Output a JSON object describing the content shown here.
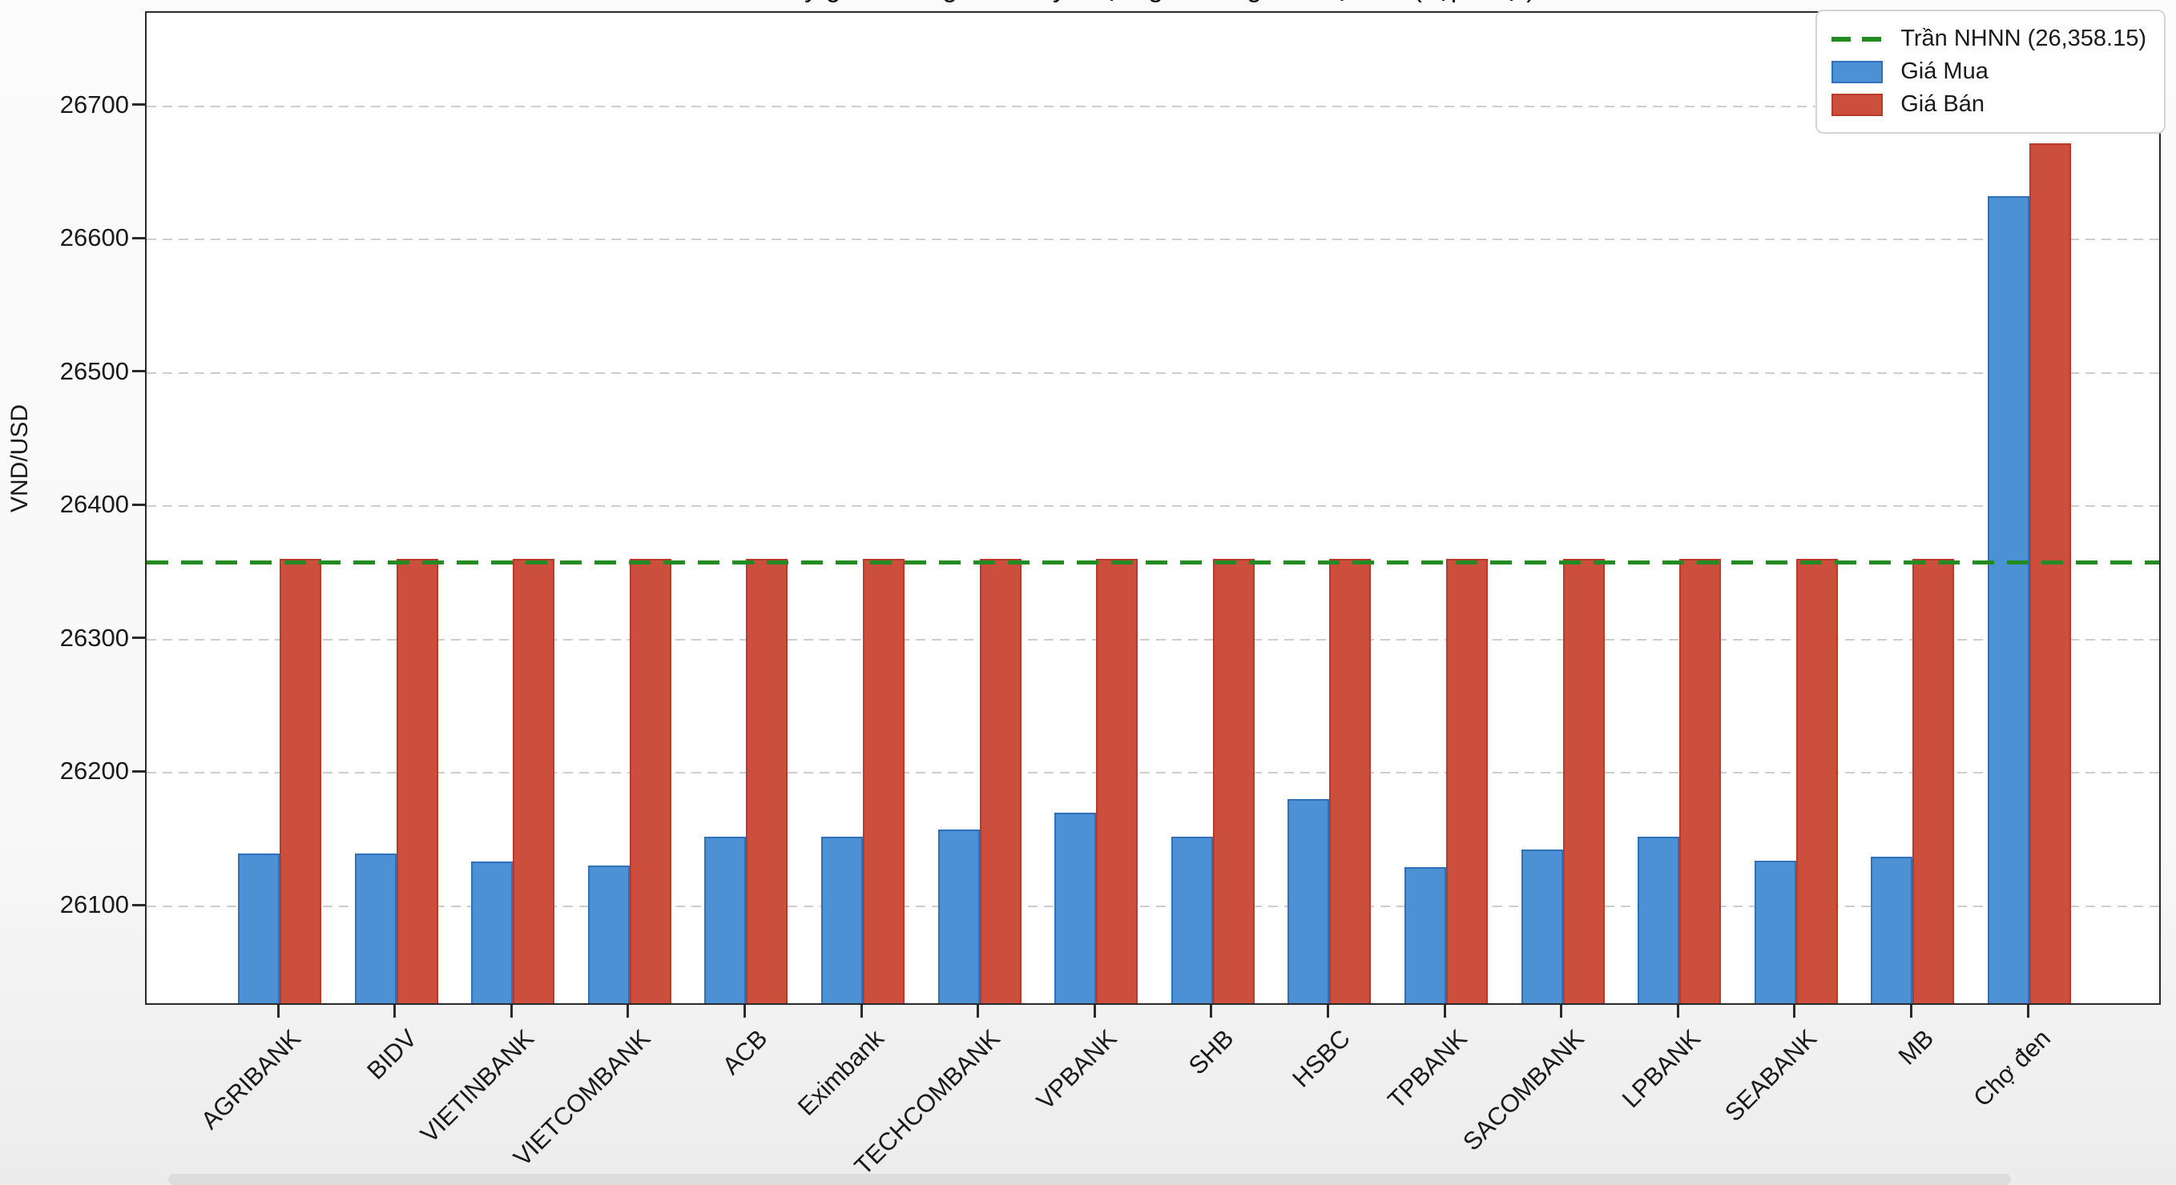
{
  "title_clipped": "Tỷ giá USD: giá niêm yết tại ngân hàng và chợ đen (cập nhật)",
  "chart_data": {
    "type": "bar",
    "ylabel": "VND/USD",
    "categories": [
      "AGRIBANK",
      "BIDV",
      "VIETINBANK",
      "VIETCOMBANK",
      "ACB",
      "Eximbank",
      "TECHCOMBANK",
      "VPBANK",
      "SHB",
      "HSBC",
      "TPBANK",
      "SACOMBANK",
      "LPBANK",
      "SEABANK",
      "MB",
      "Chợ đen"
    ],
    "series": [
      {
        "name": "Giá Mua",
        "color": "#4c91d3",
        "edge_color": "#3070b8",
        "values": [
          26137,
          26137,
          26131,
          26128,
          26150,
          26150,
          26155,
          26168,
          26150,
          26178,
          26127,
          26140,
          26150,
          26132,
          26135,
          26630
        ]
      },
      {
        "name": "Giá Bán",
        "color": "#cc4f3e",
        "edge_color": "#b93a2b",
        "values": [
          26358,
          26358,
          26358,
          26358,
          26358,
          26358,
          26358,
          26358,
          26358,
          26358,
          26358,
          26358,
          26358,
          26358,
          26358,
          26670
        ]
      }
    ],
    "reference_line": {
      "label": "Trần NHNN (26,358.15)",
      "value": 26358.15,
      "color": "#228b22",
      "style": "dashed"
    },
    "ylim": [
      26025,
      26770
    ],
    "yticks": [
      "26100",
      "26200",
      "26300",
      "26400",
      "26500",
      "26600",
      "26700"
    ],
    "grid": "horizontal dashed",
    "legend_position": "upper right"
  }
}
